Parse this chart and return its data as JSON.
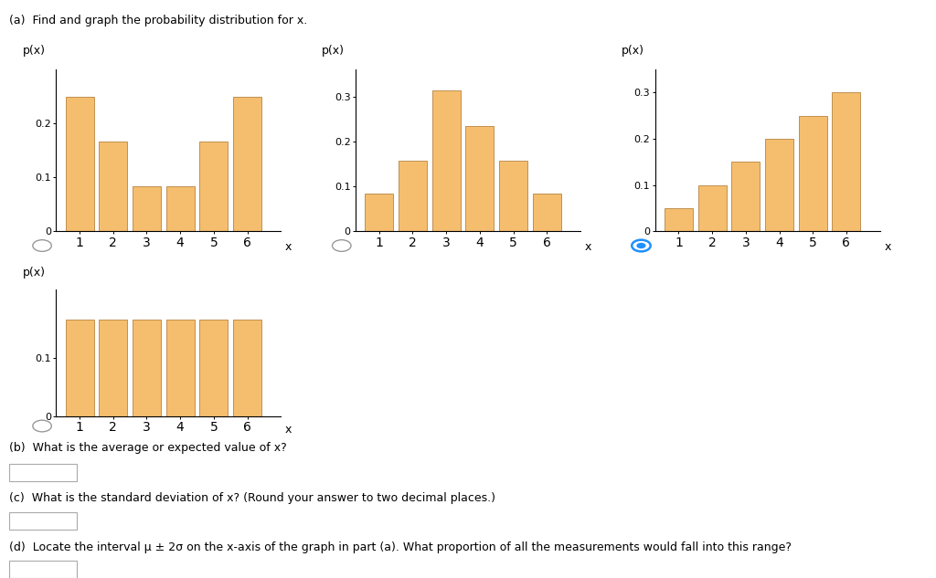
{
  "title_text": "(a)  Find and graph the probability distribution for x.",
  "bar_color": "#F5BE6E",
  "bar_edge_color": "#C09050",
  "x_values": [
    1,
    2,
    3,
    4,
    5,
    6
  ],
  "chart1_values": [
    0.25,
    0.167,
    0.083,
    0.083,
    0.167,
    0.25
  ],
  "chart2_values": [
    0.083,
    0.156,
    0.313,
    0.234,
    0.156,
    0.083
  ],
  "chart3_values": [
    0.05,
    0.1,
    0.15,
    0.2,
    0.25,
    0.3
  ],
  "chart4_values": [
    0.1667,
    0.1667,
    0.1667,
    0.1667,
    0.1667,
    0.1667
  ],
  "chart1_ylim": [
    0,
    0.3
  ],
  "chart2_ylim": [
    0,
    0.36
  ],
  "chart3_ylim": [
    0,
    0.35
  ],
  "chart4_ylim": [
    0,
    0.22
  ],
  "chart1_yticks": [
    0,
    0.1,
    0.2
  ],
  "chart2_yticks": [
    0,
    0.1,
    0.2,
    0.3
  ],
  "chart3_yticks": [
    0,
    0.1,
    0.2,
    0.3
  ],
  "chart4_yticks": [
    0,
    0.1
  ],
  "ylabel": "p(x)",
  "xlabel": "x",
  "radio_circle_color": "#1E90FF",
  "bg_color": "#FFFFFF",
  "text_color": "#000000",
  "question_b": "(b)  What is the average or expected value of x?",
  "question_c": "(c)  What is the standard deviation of x? (Round your answer to two decimal places.)",
  "question_d": "(d)  Locate the interval μ ± 2σ on the x-axis of the graph in part (a). What proportion of all the measurements would fall into this range?",
  "font_size": 9,
  "axis_font_size": 8
}
